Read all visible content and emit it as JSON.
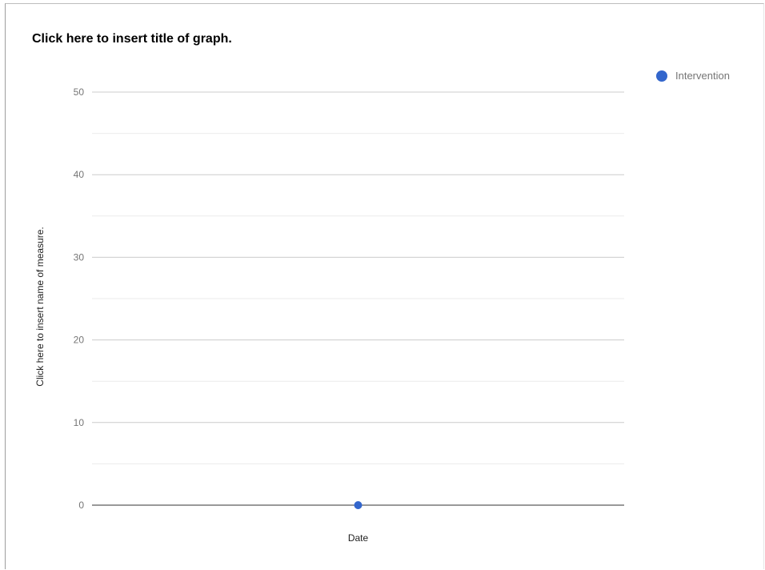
{
  "chart_data": {
    "type": "scatter",
    "title": "Click here to insert title of graph.",
    "xlabel": "Date",
    "ylabel": "Click here to insert name of measure.",
    "ylim": [
      0,
      50
    ],
    "yticks": [
      0,
      10,
      20,
      30,
      40,
      50
    ],
    "ticks_labels": [
      "0",
      "10",
      "20",
      "30",
      "40",
      "50"
    ],
    "grid": true,
    "legend_position": "top-right",
    "series": [
      {
        "name": "Intervention",
        "color": "#3366cc",
        "points": [
          {
            "x": null,
            "y": 0
          }
        ]
      }
    ]
  },
  "colors": {
    "gridline": "#cccccc",
    "minor_gridline": "#ebebeb",
    "baseline": "#333333",
    "series": "#3366cc"
  }
}
